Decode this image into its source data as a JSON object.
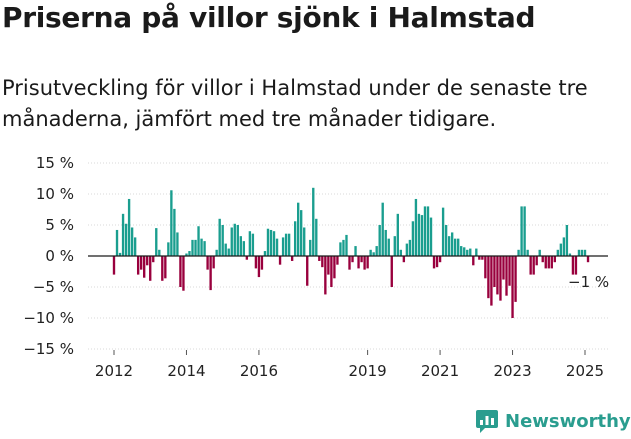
{
  "title": "Priserna på villor sjönk i Halmstad",
  "subtitle": "Prisutveckling för villor i Halmstad under de senaste tre månaderna, jämfört med tre månader tidigare.",
  "brand": "Newsworthy",
  "chart_data": {
    "type": "bar",
    "ylim": [
      -15,
      15
    ],
    "yticks": [
      15,
      10,
      5,
      0,
      -5,
      -10,
      -15
    ],
    "ytick_labels": [
      "15 %",
      "10 %",
      "5 %",
      "0 %",
      "−5 %",
      "−10 %",
      "−15 %"
    ],
    "xticks": [
      2012,
      2014,
      2016,
      2019,
      2021,
      2023,
      2025
    ],
    "xtick_labels": [
      "2012",
      "2014",
      "2016",
      "2019",
      "2021",
      "2023",
      "2025"
    ],
    "start": "2012-01",
    "end_label": "−1 %",
    "grid": true,
    "colors": {
      "positive": "#1a9e8f",
      "negative": "#99003d"
    },
    "values": [
      -3,
      4.2,
      0.5,
      6.8,
      5.2,
      9.2,
      4.6,
      3.0,
      -3.0,
      -2.2,
      -3.5,
      -1.5,
      -4.0,
      -1.0,
      4.5,
      1.0,
      -4.0,
      -3.6,
      2.2,
      10.6,
      7.6,
      3.8,
      -5.0,
      -5.6,
      0.4,
      0.8,
      2.6,
      2.6,
      4.8,
      2.8,
      2.4,
      -2.2,
      -5.5,
      -2.0,
      1.0,
      6.0,
      5.0,
      2.0,
      1.2,
      4.6,
      5.2,
      5.0,
      3.2,
      2.4,
      -0.6,
      4.0,
      3.6,
      -2.0,
      -3.4,
      -2.2,
      0.8,
      4.4,
      4.2,
      4.0,
      2.8,
      -1.4,
      3.0,
      3.6,
      3.6,
      -0.8,
      5.6,
      8.6,
      7.4,
      4.6,
      -4.8,
      2.6,
      11.0,
      6.0,
      -0.8,
      -1.8,
      -6.2,
      -3.0,
      -5.0,
      -3.6,
      -1.4,
      2.2,
      2.6,
      3.4,
      -2.2,
      -1.0,
      1.6,
      -2.0,
      -1.0,
      -2.2,
      -2.0,
      1.0,
      0.6,
      1.6,
      5.0,
      8.6,
      4.2,
      2.8,
      -5.0,
      3.2,
      6.8,
      1.0,
      -1.0,
      2.0,
      2.6,
      5.6,
      9.2,
      6.8,
      6.6,
      8.0,
      8.0,
      6.2,
      -2.0,
      -1.8,
      -1.0,
      7.8,
      5.0,
      3.2,
      3.8,
      2.8,
      2.8,
      1.6,
      1.4,
      1.0,
      1.2,
      -1.5,
      1.2,
      -0.6,
      -0.6,
      -3.6,
      -6.8,
      -8.0,
      -5.0,
      -6.2,
      -7.2,
      -3.8,
      -6.4,
      -4.8,
      -10.0,
      -7.4,
      1.0,
      8.0,
      8.0,
      1.0,
      -3.0,
      -3.0,
      -1.5,
      1.0,
      -1.0,
      -2.0,
      -2.0,
      -2.0,
      -1.0,
      1.0,
      2.0,
      3.0,
      5.0,
      0.4,
      -3.0,
      -3.0,
      1.0,
      1.0,
      1.0,
      -1.0
    ]
  }
}
